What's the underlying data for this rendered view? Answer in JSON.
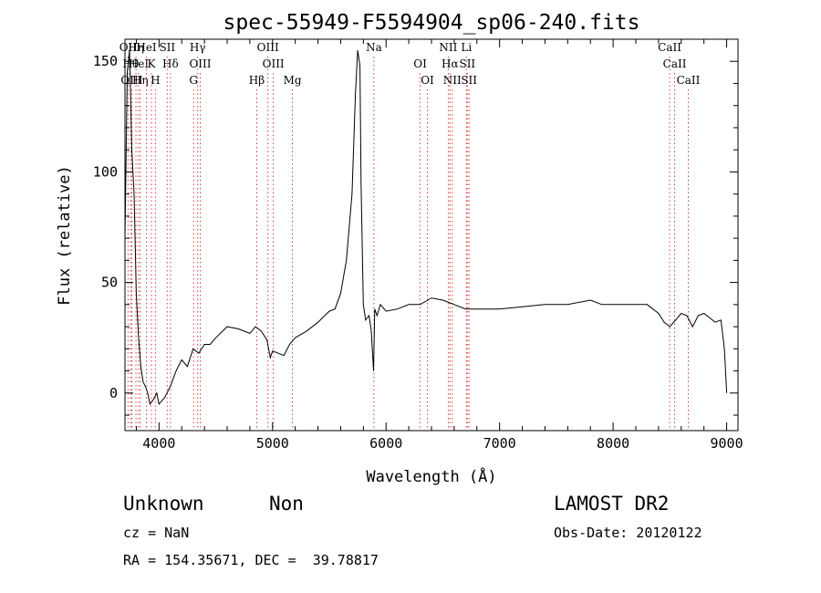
{
  "chart_data": {
    "type": "line",
    "title": "spec-55949-F5594904_sp06-240.fits",
    "xlabel": "Wavelength (Å)",
    "ylabel": "Flux (relative)",
    "xlim": [
      3700,
      9100
    ],
    "ylim": [
      -17,
      160
    ],
    "xticks": [
      4000,
      5000,
      6000,
      7000,
      8000,
      9000
    ],
    "yticks": [
      0,
      50,
      100,
      150
    ],
    "grid": false,
    "series": [
      {
        "values_x": [
          3700,
          3720,
          3740,
          3760,
          3780,
          3800,
          3820,
          3840,
          3860,
          3880,
          3900,
          3920,
          3950,
          3980,
          4000,
          4050,
          4100,
          4150,
          4200,
          4250,
          4300,
          4350,
          4400,
          4450,
          4500,
          4600,
          4700,
          4800,
          4850,
          4900,
          4950,
          4980,
          5000,
          5050,
          5100,
          5150,
          5200,
          5300,
          5400,
          5500,
          5550,
          5600,
          5650,
          5700,
          5730,
          5750,
          5770,
          5780,
          5800,
          5820,
          5850,
          5870,
          5890,
          5900,
          5920,
          5950,
          6000,
          6100,
          6200,
          6300,
          6400,
          6500,
          6550,
          6600,
          6700,
          6800,
          6900,
          7000,
          7200,
          7400,
          7600,
          7800,
          7900,
          8000,
          8100,
          8200,
          8300,
          8400,
          8450,
          8500,
          8550,
          8600,
          8650,
          8700,
          8750,
          8800,
          8850,
          8900,
          8950,
          8980,
          9000
        ],
        "values_y": [
          70,
          145,
          155,
          110,
          90,
          45,
          25,
          12,
          5,
          3,
          0,
          -5,
          -3,
          0,
          -5,
          -2,
          3,
          10,
          15,
          12,
          20,
          18,
          22,
          22,
          25,
          30,
          29,
          27,
          30,
          28,
          24,
          16,
          19,
          18,
          17,
          22,
          25,
          28,
          32,
          37,
          38,
          45,
          60,
          90,
          135,
          155,
          148,
          95,
          40,
          33,
          35,
          28,
          10,
          38,
          35,
          40,
          37,
          38,
          40,
          40,
          43,
          42,
          41,
          40,
          38,
          38,
          38,
          38,
          39,
          40,
          40,
          42,
          40,
          40,
          40,
          40,
          40,
          36,
          32,
          30,
          33,
          36,
          35,
          30,
          35,
          36,
          34,
          32,
          33,
          20,
          0
        ]
      }
    ],
    "line_markers": [
      {
        "wave": 3727,
        "label": "OII"
      },
      {
        "wave": 3750,
        "label": "Hθ"
      },
      {
        "wave": 3760,
        "label": "OIII"
      },
      {
        "wave": 3797,
        "label": "Hη"
      },
      {
        "wave": 3820,
        "label": "HeI"
      },
      {
        "wave": 3835,
        "label": "Hη"
      },
      {
        "wave": 3889,
        "label": "HeI"
      },
      {
        "wave": 3933,
        "label": "K"
      },
      {
        "wave": 3968,
        "label": "H"
      },
      {
        "wave": 4072,
        "label": "SII"
      },
      {
        "wave": 4101,
        "label": "Hδ"
      },
      {
        "wave": 4304,
        "label": "G"
      },
      {
        "wave": 4340,
        "label": "Hγ"
      },
      {
        "wave": 4363,
        "label": "OIII"
      },
      {
        "wave": 4861,
        "label": "Hβ"
      },
      {
        "wave": 4959,
        "label": "OIII"
      },
      {
        "wave": 5007,
        "label": "OIII"
      },
      {
        "wave": 5175,
        "label": "Mg"
      },
      {
        "wave": 5893,
        "label": "Na"
      },
      {
        "wave": 6300,
        "label": "OI"
      },
      {
        "wave": 6364,
        "label": "OI"
      },
      {
        "wave": 6548,
        "label": "NII"
      },
      {
        "wave": 6563,
        "label": "Hα"
      },
      {
        "wave": 6583,
        "label": "NII"
      },
      {
        "wave": 6708,
        "label": "Li"
      },
      {
        "wave": 6716,
        "label": "SII"
      },
      {
        "wave": 6731,
        "label": "SII"
      },
      {
        "wave": 8498,
        "label": "CaII"
      },
      {
        "wave": 8542,
        "label": "CaII"
      },
      {
        "wave": 8662,
        "label": "CaII"
      }
    ]
  },
  "info": {
    "class_label": "Unknown",
    "subclass_label": "Non",
    "survey": "LAMOST DR2",
    "cz": "cz = NaN",
    "obs_date": "Obs-Date: 20120122",
    "coords": "RA = 154.35671, DEC =  39.78817"
  }
}
